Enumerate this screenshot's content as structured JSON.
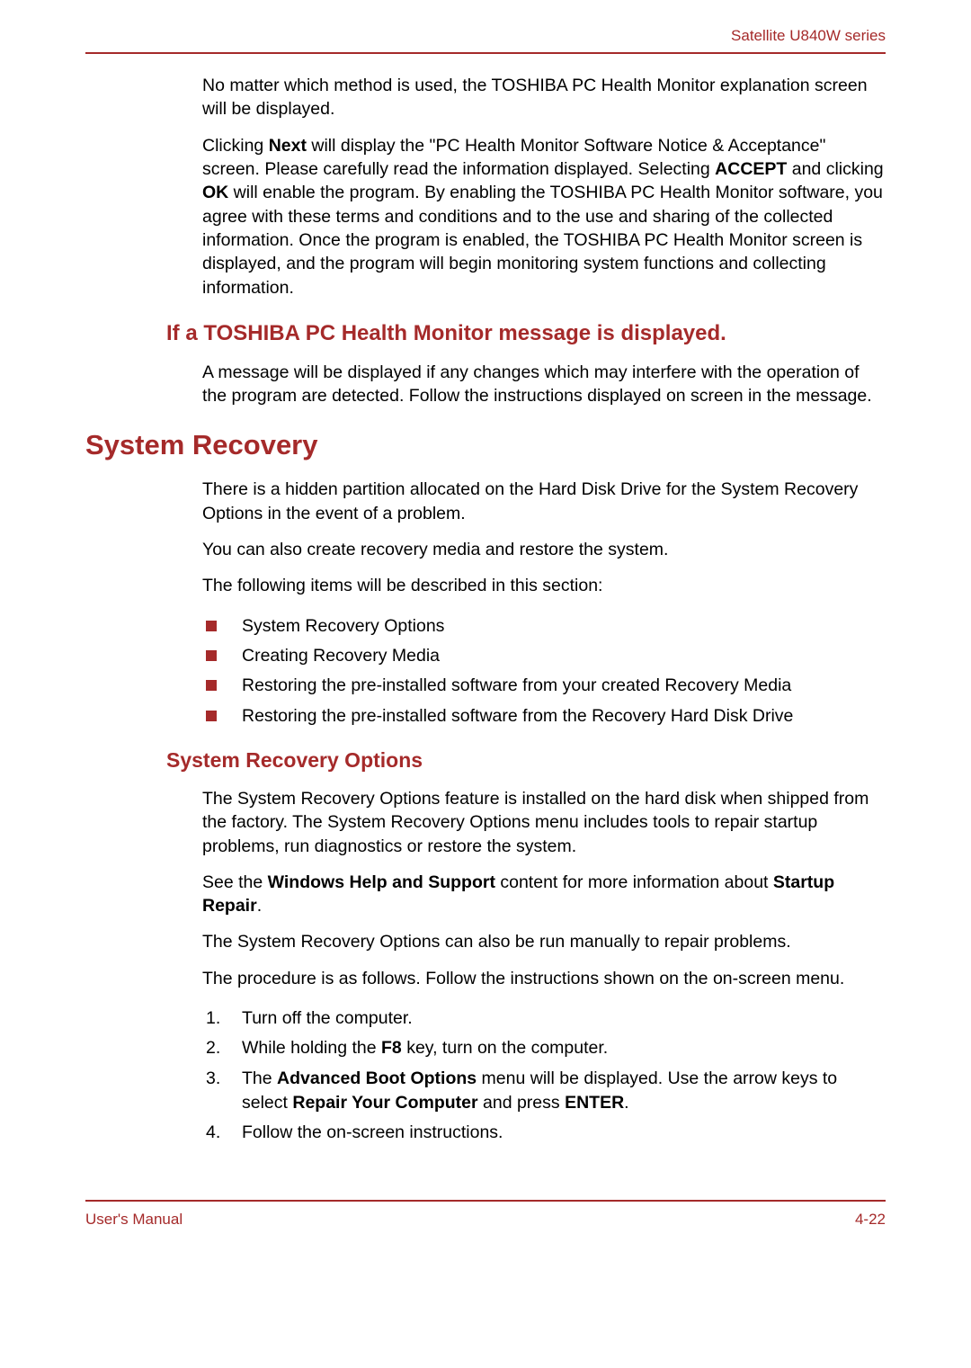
{
  "colors": {
    "accent": "#a52a2a",
    "text": "#000000",
    "background": "#ffffff",
    "rule": "#a52a2a"
  },
  "typography": {
    "body_family": "Arial, Helvetica, sans-serif",
    "body_size_pt": 14,
    "h1_size_pt": 23,
    "h2_size_pt": 18,
    "h3_size_pt": 17
  },
  "header": {
    "series": "Satellite U840W series"
  },
  "intro": {
    "p1": "No matter which method is used, the TOSHIBA PC Health Monitor explanation screen will be displayed.",
    "p2_pre": "Clicking ",
    "p2_b1": "Next",
    "p2_mid1": " will display the \"PC Health Monitor Software Notice & Acceptance\" screen. Please carefully read the information displayed. Selecting ",
    "p2_b2": "ACCEPT",
    "p2_mid2": " and clicking ",
    "p2_b3": "OK",
    "p2_post": " will enable the program. By enabling the TOSHIBA PC Health Monitor software, you agree with these terms and conditions and to the use and sharing of the collected information. Once the program is enabled, the TOSHIBA PC Health Monitor screen is displayed, and the program will begin monitoring system functions and collecting information."
  },
  "section_msg": {
    "heading": "If a TOSHIBA PC Health Monitor message is displayed.",
    "p1": "A message will be displayed if any changes which may interfere with the operation of the program are detected. Follow the instructions displayed on screen in the message."
  },
  "section_recovery": {
    "heading": "System Recovery",
    "p1": "There is a hidden partition allocated on the Hard Disk Drive for the System Recovery Options in the event of a problem.",
    "p2": "You can also create recovery media and restore the system.",
    "p3": "The following items will be described in this section:",
    "bullets": [
      "System Recovery Options",
      "Creating Recovery Media",
      "Restoring the pre-installed software from your created Recovery Media",
      "Restoring the pre-installed software from the Recovery Hard Disk Drive"
    ]
  },
  "section_options": {
    "heading": "System Recovery Options",
    "p1": "The System Recovery Options feature is installed on the hard disk when shipped from the factory. The System Recovery Options menu includes tools to repair startup problems, run diagnostics or restore the system.",
    "p2_pre": "See the ",
    "p2_b1": "Windows Help and Support",
    "p2_mid": " content for more information about ",
    "p2_b2": "Startup Repair",
    "p2_post": ".",
    "p3": "The System Recovery Options can also be run manually to repair problems.",
    "p4": "The procedure is as follows. Follow the instructions shown on the on-screen menu.",
    "steps": {
      "s1": "Turn off the computer.",
      "s2_pre": "While holding the ",
      "s2_b": "F8",
      "s2_post": " key, turn on the computer.",
      "s3_pre": "The ",
      "s3_b1": "Advanced Boot Options",
      "s3_mid": " menu will be displayed. Use the arrow keys to select ",
      "s3_b2": "Repair Your Computer",
      "s3_mid2": " and press ",
      "s3_b3": "ENTER",
      "s3_post": ".",
      "s4": "Follow the on-screen instructions."
    }
  },
  "footer": {
    "left": "User's Manual",
    "right": "4-22"
  }
}
